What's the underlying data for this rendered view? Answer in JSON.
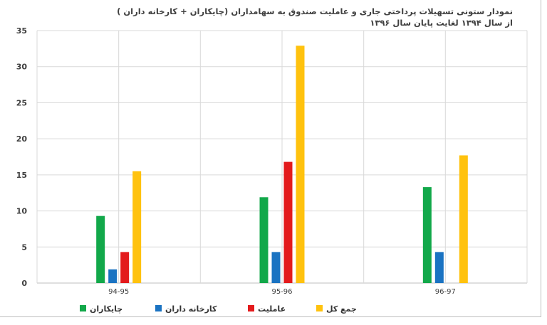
{
  "chart_data": {
    "type": "bar",
    "title_line1": "نمودار ستونی تسهیلات پرداختی جاری و عاملیت صندوق به سهامداران (چایکاران + کارخانه داران )",
    "title_line2": "از سال ۱۳۹۴ لغایت پایان سال ۱۳۹۶",
    "categories": [
      "94-95",
      "95-96",
      "96-97"
    ],
    "ylim": [
      0,
      35
    ],
    "yticks": [
      0,
      5,
      10,
      15,
      20,
      25,
      30,
      35
    ],
    "grid": true,
    "legend_position": "bottom",
    "series": [
      {
        "name": "چایکاران",
        "color": "#12a84a",
        "values": [
          9.3,
          11.9,
          13.3
        ]
      },
      {
        "name": "کارخانه داران",
        "color": "#1a73c2",
        "values": [
          1.9,
          4.3,
          4.3
        ]
      },
      {
        "name": "عاملیت",
        "color": "#e31a1c",
        "values": [
          4.3,
          16.8,
          null
        ]
      },
      {
        "name": "جمع کل",
        "color": "#ffc20e",
        "values": [
          15.5,
          32.9,
          17.7
        ]
      }
    ]
  }
}
